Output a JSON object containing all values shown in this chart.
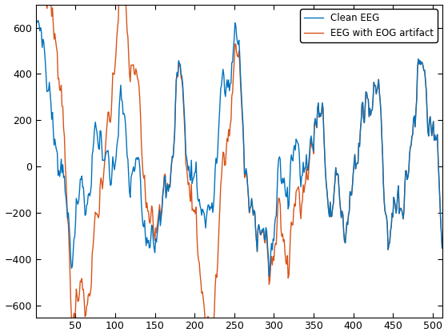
{
  "clean_eeg_color": "#0072BD",
  "eog_color": "#D95319",
  "clean_eeg_label": "Clean EEG",
  "eog_label": "EEG with EOG artifact",
  "xlim": [
    0,
    512
  ],
  "ylim": [
    -650,
    700
  ],
  "yticks": [
    -600,
    -400,
    -200,
    0,
    200,
    400,
    600
  ],
  "xticks": [
    50,
    100,
    150,
    200,
    250,
    300,
    350,
    400,
    450,
    500
  ],
  "linewidth_clean": 1.0,
  "linewidth_eog": 1.0,
  "legend_loc": "upper right",
  "background_color": "#ffffff",
  "figsize": [
    5.6,
    4.2
  ],
  "dpi": 100
}
